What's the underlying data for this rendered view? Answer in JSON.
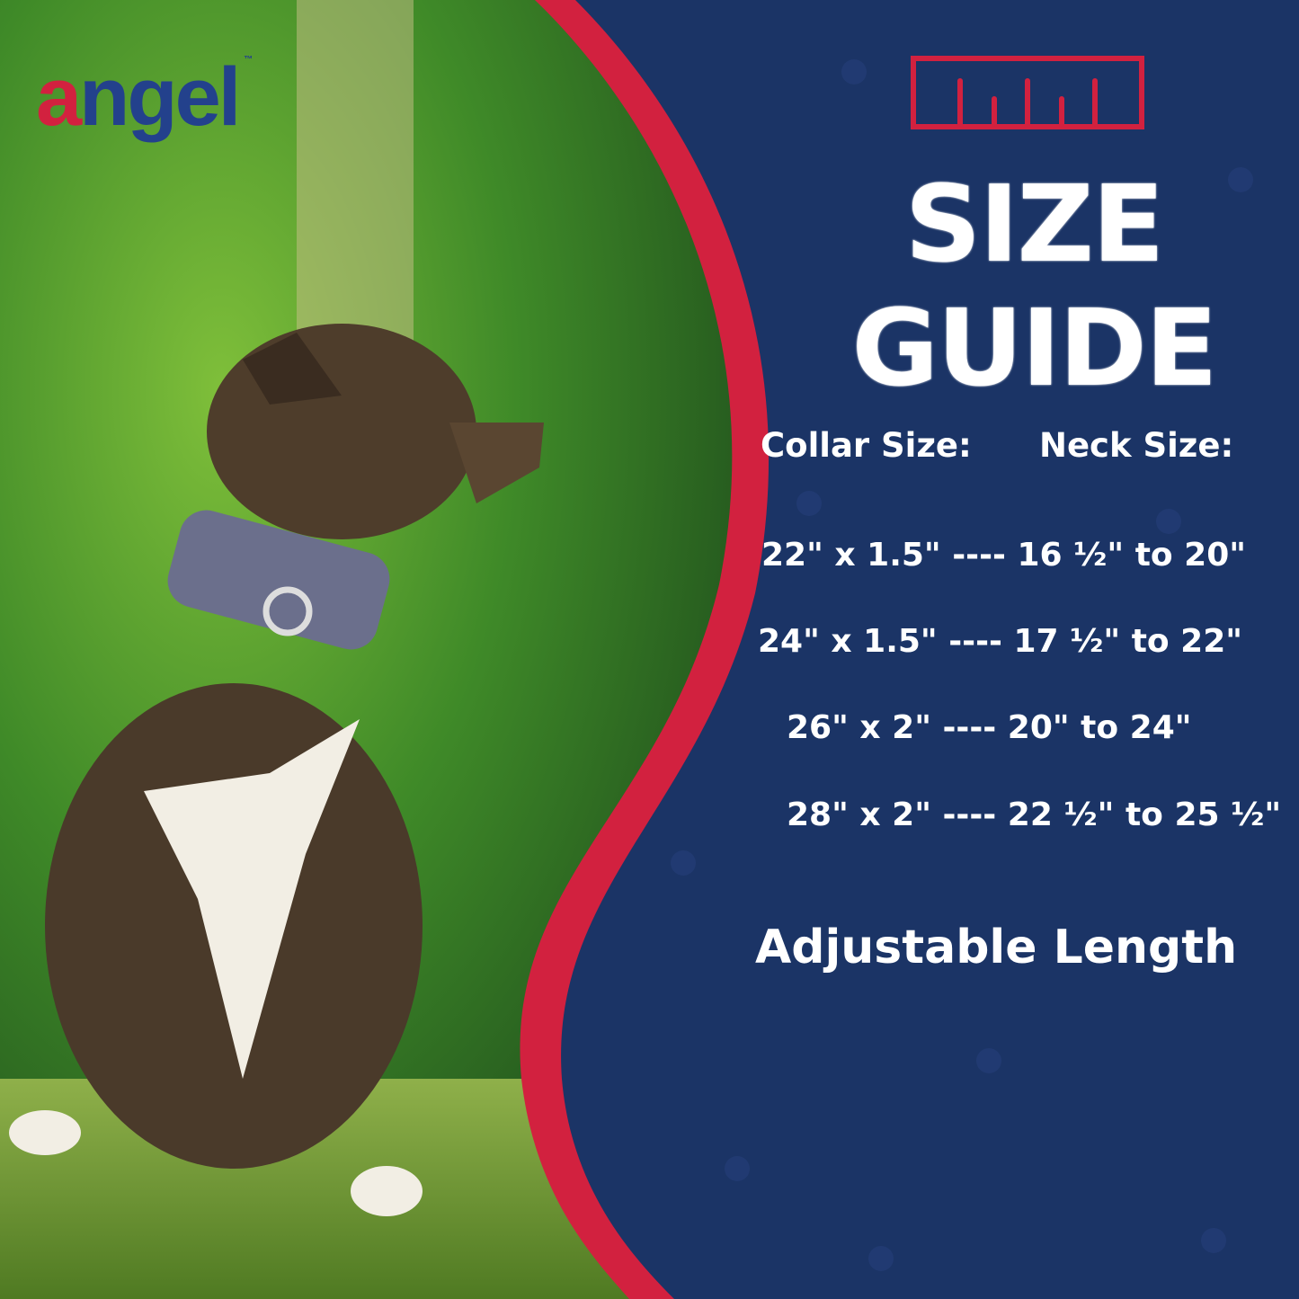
{
  "brand": {
    "logo_text": "angel",
    "logo_first_letter": "a",
    "logo_rest": "ngel",
    "trademark": "™"
  },
  "colors": {
    "navy": "#1b3466",
    "red": "#d2213f",
    "logo_blue": "#23418c",
    "white": "#ffffff"
  },
  "icons": {
    "ruler": "ruler-icon",
    "paw_pattern": "paw-print-icon"
  },
  "guide": {
    "title_line1": "SIZE",
    "title_line2": "GUIDE",
    "collar_header": "Collar Size:",
    "neck_header": "Neck Size:",
    "rows": [
      {
        "text": "22\" x 1.5\" ---- 16 ½\" to 20\""
      },
      {
        "text": "24\" x 1.5\" ---- 17 ½\" to 22\""
      },
      {
        "text": "26\" x 2\" ---- 20\" to 24\""
      },
      {
        "text": "28\" x 2\" ---- 22 ½\" to 25 ½\""
      }
    ],
    "footer": "Adjustable Length"
  }
}
